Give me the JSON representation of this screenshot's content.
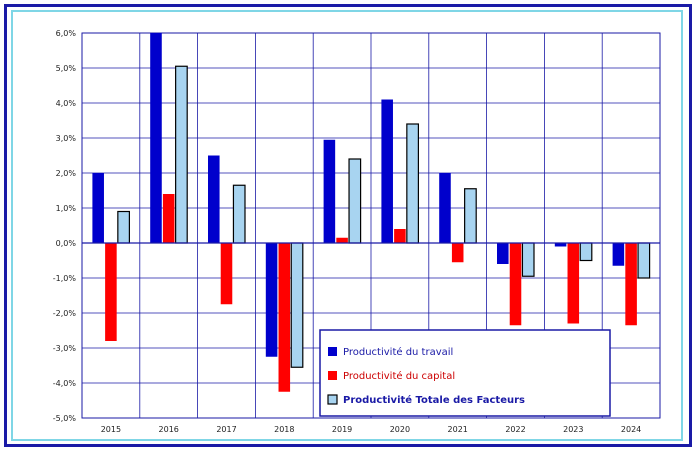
{
  "chart_data": {
    "type": "bar",
    "categories": [
      "2015",
      "2016",
      "2017",
      "2018",
      "2019",
      "2020",
      "2021",
      "2022",
      "2023",
      "2024"
    ],
    "series": [
      {
        "name": "Productivité du travail",
        "color": "#0000cc",
        "values": [
          2.0,
          6.0,
          2.5,
          -3.25,
          2.95,
          4.1,
          2.0,
          -0.6,
          -0.1,
          -0.65
        ]
      },
      {
        "name": "Productivité du capital",
        "color": "#ff0000",
        "values": [
          -2.8,
          1.4,
          -1.75,
          -4.25,
          0.15,
          0.4,
          -0.55,
          -2.35,
          -2.3,
          -2.35
        ]
      },
      {
        "name": "Productivité Totale des Facteurs",
        "color": "#a8d4f0",
        "values": [
          0.9,
          5.05,
          1.65,
          -3.55,
          2.4,
          3.4,
          1.55,
          -0.95,
          -0.5,
          -1.0
        ]
      }
    ],
    "y_ticks": [
      "-5,0%",
      "-4,0%",
      "-3,0%",
      "-2,0%",
      "-1,0%",
      "0,0%",
      "1,0%",
      "2,0%",
      "3,0%",
      "4,0%",
      "5,0%",
      "6,0%"
    ],
    "ylim": [
      -5,
      6
    ],
    "grid": true,
    "legend_position": "bottom-right"
  }
}
